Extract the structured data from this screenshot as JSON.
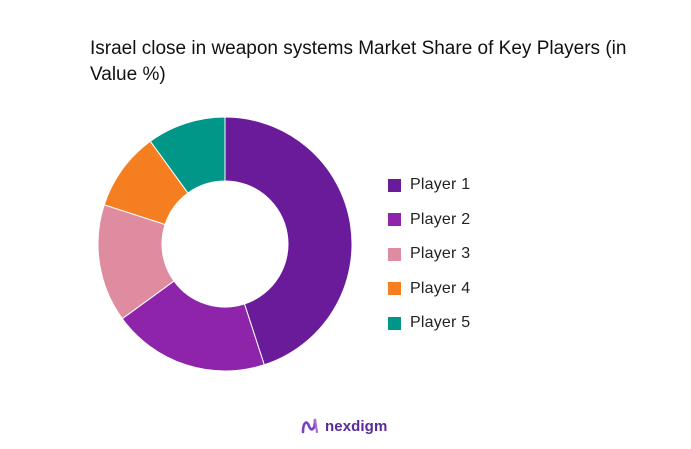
{
  "chart_data": {
    "type": "pie",
    "title": "Israel close in weapon systems Market Share of Key Players (in Value %)",
    "categories": [
      "Player 1",
      "Player 2",
      "Player 3",
      "Player 4",
      "Player 5"
    ],
    "values": [
      45,
      20,
      15,
      10,
      10
    ],
    "colors": [
      "#6a1b9a",
      "#8e24aa",
      "#e08ca0",
      "#f57f20",
      "#009688"
    ],
    "donut": true,
    "legend_position": "right"
  },
  "brand": {
    "name": "nexdigm",
    "icon": "nexdigm-logo-icon",
    "color": "#5a2a9a"
  }
}
